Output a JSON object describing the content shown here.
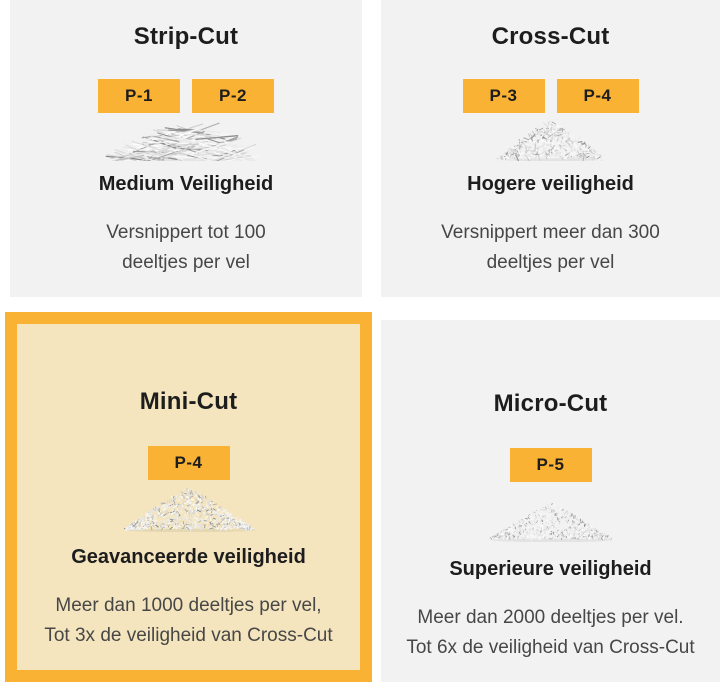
{
  "colors": {
    "accent": "#F9B233",
    "highlight_bg": "#F4E5BE",
    "panel_bg": "#F2F2F2",
    "heading_text": "#1D1D1D",
    "body_text": "#474747",
    "page_bg": "#FFFFFF"
  },
  "panels": [
    {
      "id": "strip-cut",
      "title": "Strip-Cut",
      "badges": [
        "P-1",
        "P-2"
      ],
      "image": "strip-cut-shredded-paper-pile",
      "heading": "Medium Veiligheid",
      "description": "Versnippert tot 100\ndeeltjes per vel",
      "highlighted": false
    },
    {
      "id": "cross-cut",
      "title": "Cross-Cut",
      "badges": [
        "P-3",
        "P-4"
      ],
      "image": "cross-cut-shredded-paper-pile",
      "heading": "Hogere veiligheid",
      "description": "Versnippert meer dan 300\ndeeltjes per vel",
      "highlighted": false
    },
    {
      "id": "mini-cut",
      "title": "Mini-Cut",
      "badges": [
        "P-4"
      ],
      "image": "mini-cut-shredded-paper-pile",
      "heading": "Geavanceerde veiligheid",
      "description": "Meer dan 1000 deeltjes per vel,\nTot 3x de veiligheid van Cross-Cut",
      "highlighted": true
    },
    {
      "id": "micro-cut",
      "title": "Micro-Cut",
      "badges": [
        "P-5"
      ],
      "image": "micro-cut-shredded-paper-pile",
      "heading": "Superieure veiligheid",
      "description": "Meer dan 2000 deeltjes per vel.\nTot 6x de veiligheid van Cross-Cut",
      "highlighted": false
    }
  ]
}
